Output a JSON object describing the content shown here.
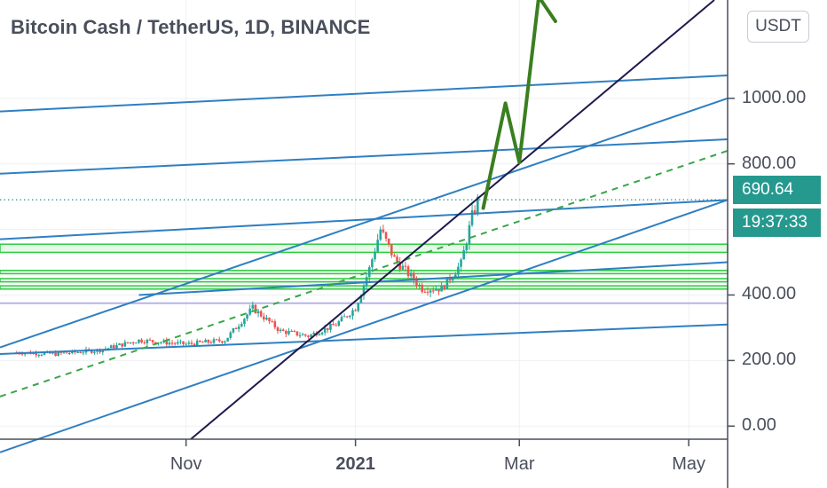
{
  "header": {
    "title": "Bitcoin Cash / TetherUS, 1D, BINANCE",
    "currency_button": "USDT"
  },
  "price_badge": {
    "price": "690.64",
    "countdown": "19:37:33"
  },
  "colors": {
    "up_candle": "#26a69a",
    "down_candle": "#ef5350",
    "trend_line": "#2f7fc1",
    "dark_line": "#1f1a4d",
    "green_zone": "#2ecc40",
    "forecast_arrow": "#3a7f1f",
    "badge": "#26998f"
  },
  "chart_data": {
    "type": "candlestick",
    "symbol": "Bitcoin Cash / TetherUS",
    "interval": "1D",
    "exchange": "BINANCE",
    "y_axis": {
      "ticks": [
        "0.00",
        "200.00",
        "400.00",
        "800.00",
        "1000.00"
      ],
      "tick_values": [
        0,
        200,
        400,
        800,
        1000
      ],
      "range": [
        -40,
        1300
      ]
    },
    "x_axis": {
      "ticks": [
        "Nov",
        "2021",
        "Mar",
        "May"
      ],
      "tick_dates": [
        "2020-11-01",
        "2021-01-01",
        "2021-03-01",
        "2021-05-01"
      ],
      "range": [
        "2020-08-26",
        "2021-05-15"
      ]
    },
    "last_price": 690.64,
    "price_line": 690.64,
    "candles_approx": [
      {
        "date": "2020-09-01",
        "close": 225
      },
      {
        "date": "2020-09-15",
        "close": 220
      },
      {
        "date": "2020-10-01",
        "close": 232
      },
      {
        "date": "2020-10-15",
        "close": 262
      },
      {
        "date": "2020-11-01",
        "close": 250
      },
      {
        "date": "2020-11-15",
        "close": 262
      },
      {
        "date": "2020-11-25",
        "close": 360
      },
      {
        "date": "2020-12-05",
        "close": 290
      },
      {
        "date": "2020-12-15",
        "close": 275
      },
      {
        "date": "2020-12-25",
        "close": 310
      },
      {
        "date": "2021-01-01",
        "close": 360
      },
      {
        "date": "2021-01-06",
        "close": 480
      },
      {
        "date": "2021-01-10",
        "close": 600
      },
      {
        "date": "2021-01-15",
        "close": 510
      },
      {
        "date": "2021-01-25",
        "close": 420
      },
      {
        "date": "2021-02-01",
        "close": 420
      },
      {
        "date": "2021-02-08",
        "close": 495
      },
      {
        "date": "2021-02-12",
        "close": 640
      },
      {
        "date": "2021-02-15",
        "close": 710
      }
    ],
    "zones": [
      {
        "from": 530,
        "to": 555
      },
      {
        "from": 465,
        "to": 475
      },
      {
        "from": 440,
        "to": 450
      },
      {
        "from": 418,
        "to": 428
      }
    ],
    "horizontal_lines": [
      375
    ],
    "trend_lines": [
      {
        "from": [
          "2020-08-26",
          960
        ],
        "to": [
          "2021-05-15",
          1070
        ]
      },
      {
        "from": [
          "2020-08-26",
          770
        ],
        "to": [
          "2021-05-15",
          875
        ]
      },
      {
        "from": [
          "2020-08-26",
          570
        ],
        "to": [
          "2021-05-15",
          690
        ]
      },
      {
        "from": [
          "2020-08-26",
          220
        ],
        "to": [
          "2021-05-15",
          310
        ]
      },
      {
        "from": [
          "2020-08-26",
          240
        ],
        "to": [
          "2021-05-15",
          1000
        ]
      },
      {
        "from": [
          "2020-08-26",
          -80
        ],
        "to": [
          "2021-05-15",
          690
        ]
      },
      {
        "from": [
          "2020-10-15",
          400
        ],
        "to": [
          "2021-05-15",
          500
        ]
      },
      {
        "from": [
          "2020-08-26",
          90
        ],
        "to": [
          "2021-05-15",
          840
        ],
        "dashed": true
      }
    ],
    "forecast_path": [
      {
        "date": "2021-02-16",
        "value": 665
      },
      {
        "date": "2021-02-24",
        "value": 985
      },
      {
        "date": "2021-03-01",
        "value": 805
      },
      {
        "date": "2021-03-08",
        "value": 1310
      },
      {
        "date": "2021-03-14",
        "value": 1235
      }
    ]
  }
}
